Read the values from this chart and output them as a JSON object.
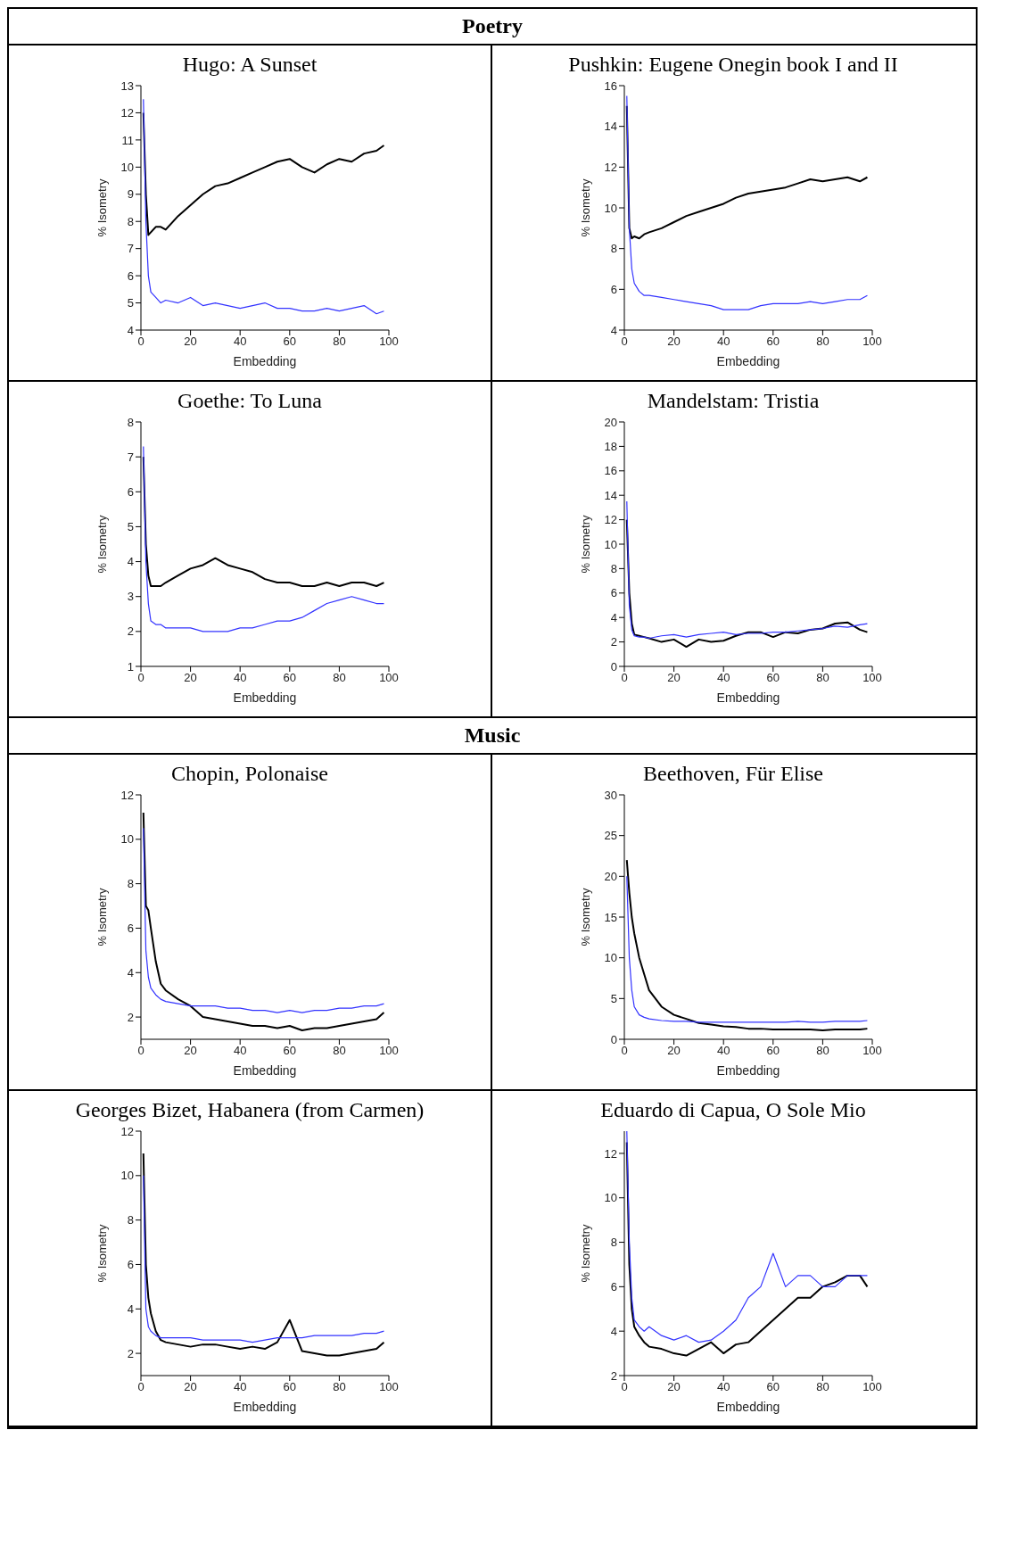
{
  "chart_data": [
    {
      "type": "line",
      "title": "Hugo: A Sunset",
      "annotations": [
        "Poetry"
      ],
      "xlabel": "Embedding",
      "ylabel": "% Isometry",
      "xlim": [
        0,
        100
      ],
      "xticks": [
        0,
        20,
        40,
        60,
        80,
        100
      ],
      "ylim": [
        4,
        13
      ],
      "yticks": [
        4,
        5,
        6,
        7,
        8,
        9,
        10,
        11,
        12,
        13
      ],
      "x": [
        1,
        2,
        3,
        4,
        6,
        8,
        10,
        15,
        20,
        25,
        30,
        35,
        40,
        45,
        50,
        55,
        60,
        65,
        70,
        75,
        80,
        85,
        90,
        95,
        98
      ],
      "series": [
        {
          "color": "#000000",
          "values": [
            12,
            9,
            7.5,
            7.6,
            7.8,
            7.8,
            7.7,
            8.2,
            8.6,
            9.0,
            9.3,
            9.4,
            9.6,
            9.8,
            10.0,
            10.2,
            10.3,
            10.0,
            9.8,
            10.1,
            10.3,
            10.2,
            10.5,
            10.6,
            10.8
          ]
        },
        {
          "color": "#3333ff",
          "values": [
            12.5,
            8,
            6,
            5.4,
            5.2,
            5.0,
            5.1,
            5.0,
            5.2,
            4.9,
            5.0,
            4.9,
            4.8,
            4.9,
            5.0,
            4.8,
            4.8,
            4.7,
            4.7,
            4.8,
            4.7,
            4.8,
            4.9,
            4.6,
            4.7
          ]
        }
      ]
    },
    {
      "type": "line",
      "title": "Pushkin: Eugene Onegin book I and II",
      "xlabel": "Embedding",
      "ylabel": "% Isometry",
      "xlim": [
        0,
        100
      ],
      "xticks": [
        0,
        20,
        40,
        60,
        80,
        100
      ],
      "ylim": [
        4,
        16
      ],
      "yticks": [
        4,
        6,
        8,
        10,
        12,
        14,
        16
      ],
      "x": [
        1,
        2,
        3,
        4,
        6,
        8,
        10,
        15,
        20,
        25,
        30,
        35,
        40,
        45,
        50,
        55,
        60,
        65,
        70,
        75,
        80,
        85,
        90,
        95,
        98
      ],
      "series": [
        {
          "color": "#000000",
          "values": [
            15,
            9,
            8.5,
            8.6,
            8.5,
            8.7,
            8.8,
            9.0,
            9.3,
            9.6,
            9.8,
            10.0,
            10.2,
            10.5,
            10.7,
            10.8,
            10.9,
            11.0,
            11.2,
            11.4,
            11.3,
            11.4,
            11.5,
            11.3,
            11.5
          ]
        },
        {
          "color": "#3333ff",
          "values": [
            15.5,
            9,
            7,
            6.3,
            5.9,
            5.7,
            5.7,
            5.6,
            5.5,
            5.4,
            5.3,
            5.2,
            5.0,
            5.0,
            5.0,
            5.2,
            5.3,
            5.3,
            5.3,
            5.4,
            5.3,
            5.4,
            5.5,
            5.5,
            5.7
          ]
        }
      ]
    },
    {
      "type": "line",
      "title": "Goethe: To Luna",
      "xlabel": "Embedding",
      "ylabel": "% Isometry",
      "xlim": [
        0,
        100
      ],
      "xticks": [
        0,
        20,
        40,
        60,
        80,
        100
      ],
      "ylim": [
        1,
        8
      ],
      "yticks": [
        1,
        2,
        3,
        4,
        5,
        6,
        7,
        8
      ],
      "x": [
        1,
        2,
        3,
        4,
        6,
        8,
        10,
        15,
        20,
        25,
        30,
        35,
        40,
        45,
        50,
        55,
        60,
        65,
        70,
        75,
        80,
        85,
        90,
        95,
        98
      ],
      "series": [
        {
          "color": "#000000",
          "values": [
            7,
            4.5,
            3.6,
            3.3,
            3.3,
            3.3,
            3.4,
            3.6,
            3.8,
            3.9,
            4.1,
            3.9,
            3.8,
            3.7,
            3.5,
            3.4,
            3.4,
            3.3,
            3.3,
            3.4,
            3.3,
            3.4,
            3.4,
            3.3,
            3.4
          ]
        },
        {
          "color": "#3333ff",
          "values": [
            7.3,
            4,
            2.8,
            2.3,
            2.2,
            2.2,
            2.1,
            2.1,
            2.1,
            2.0,
            2.0,
            2.0,
            2.1,
            2.1,
            2.2,
            2.3,
            2.3,
            2.4,
            2.6,
            2.8,
            2.9,
            3.0,
            2.9,
            2.8,
            2.8
          ]
        }
      ]
    },
    {
      "type": "line",
      "title": "Mandelstam: Tristia",
      "xlabel": "Embedding",
      "ylabel": "% Isometry",
      "xlim": [
        0,
        100
      ],
      "xticks": [
        0,
        20,
        40,
        60,
        80,
        100
      ],
      "ylim": [
        0,
        20
      ],
      "yticks": [
        0,
        2,
        4,
        6,
        8,
        10,
        12,
        14,
        16,
        18,
        20
      ],
      "x": [
        1,
        2,
        3,
        4,
        6,
        8,
        10,
        15,
        20,
        25,
        30,
        35,
        40,
        45,
        50,
        55,
        60,
        65,
        70,
        75,
        80,
        85,
        90,
        95,
        98
      ],
      "series": [
        {
          "color": "#000000",
          "values": [
            12,
            6,
            3.5,
            2.6,
            2.5,
            2.4,
            2.3,
            2.0,
            2.2,
            1.6,
            2.2,
            2.0,
            2.1,
            2.5,
            2.8,
            2.8,
            2.4,
            2.8,
            2.7,
            3.0,
            3.1,
            3.5,
            3.6,
            3.0,
            2.8
          ]
        },
        {
          "color": "#3333ff",
          "values": [
            13.5,
            5,
            3,
            2.5,
            2.4,
            2.4,
            2.3,
            2.5,
            2.6,
            2.4,
            2.6,
            2.7,
            2.8,
            2.6,
            2.7,
            2.7,
            2.8,
            2.8,
            2.9,
            3.0,
            3.1,
            3.3,
            3.2,
            3.4,
            3.5
          ]
        }
      ]
    },
    {
      "type": "line",
      "title": "Chopin, Polonaise",
      "annotations": [
        "Music"
      ],
      "xlabel": "Embedding",
      "ylabel": "% Isometry",
      "xlim": [
        0,
        100
      ],
      "xticks": [
        0,
        20,
        40,
        60,
        80,
        100
      ],
      "ylim": [
        1,
        12
      ],
      "yticks": [
        2,
        4,
        6,
        8,
        10,
        12
      ],
      "x": [
        1,
        2,
        3,
        4,
        6,
        8,
        10,
        15,
        20,
        25,
        30,
        35,
        40,
        45,
        50,
        55,
        60,
        65,
        70,
        75,
        80,
        85,
        90,
        95,
        98
      ],
      "series": [
        {
          "color": "#000000",
          "values": [
            11.2,
            7,
            6.8,
            6,
            4.5,
            3.5,
            3.2,
            2.8,
            2.5,
            2.0,
            1.9,
            1.8,
            1.7,
            1.6,
            1.6,
            1.5,
            1.6,
            1.4,
            1.5,
            1.5,
            1.6,
            1.7,
            1.8,
            1.9,
            2.2
          ]
        },
        {
          "color": "#3333ff",
          "values": [
            10.5,
            5,
            3.8,
            3.3,
            3.0,
            2.8,
            2.7,
            2.6,
            2.5,
            2.5,
            2.5,
            2.4,
            2.4,
            2.3,
            2.3,
            2.2,
            2.3,
            2.2,
            2.3,
            2.3,
            2.4,
            2.4,
            2.5,
            2.5,
            2.6
          ]
        }
      ]
    },
    {
      "type": "line",
      "title": "Beethoven, Für Elise",
      "xlabel": "Embedding",
      "ylabel": "% Isometry",
      "xlim": [
        0,
        100
      ],
      "xticks": [
        0,
        20,
        40,
        60,
        80,
        100
      ],
      "ylim": [
        0,
        30
      ],
      "yticks": [
        0,
        5,
        10,
        15,
        20,
        25,
        30
      ],
      "x": [
        1,
        2,
        3,
        4,
        6,
        8,
        10,
        15,
        20,
        25,
        30,
        35,
        40,
        45,
        50,
        55,
        60,
        65,
        70,
        75,
        80,
        85,
        90,
        95,
        98
      ],
      "series": [
        {
          "color": "#000000",
          "values": [
            22,
            18,
            15,
            13,
            10,
            8,
            6,
            4,
            3,
            2.5,
            2.0,
            1.8,
            1.6,
            1.5,
            1.3,
            1.3,
            1.2,
            1.2,
            1.2,
            1.2,
            1.1,
            1.2,
            1.2,
            1.2,
            1.3
          ]
        },
        {
          "color": "#3333ff",
          "values": [
            20,
            10,
            6,
            4,
            3,
            2.7,
            2.5,
            2.3,
            2.2,
            2.2,
            2.1,
            2.1,
            2.1,
            2.1,
            2.1,
            2.1,
            2.1,
            2.1,
            2.2,
            2.1,
            2.1,
            2.2,
            2.2,
            2.2,
            2.3
          ]
        }
      ]
    },
    {
      "type": "line",
      "title": "Georges Bizet, Habanera (from Carmen)",
      "xlabel": "Embedding",
      "ylabel": "% Isometry",
      "xlim": [
        0,
        100
      ],
      "xticks": [
        0,
        20,
        40,
        60,
        80,
        100
      ],
      "ylim": [
        1,
        12
      ],
      "yticks": [
        2,
        4,
        6,
        8,
        10,
        12
      ],
      "x": [
        1,
        2,
        3,
        4,
        6,
        8,
        10,
        15,
        20,
        25,
        30,
        35,
        40,
        45,
        50,
        55,
        60,
        65,
        70,
        75,
        80,
        85,
        90,
        95,
        98
      ],
      "series": [
        {
          "color": "#000000",
          "values": [
            11,
            6,
            4.5,
            3.8,
            3.0,
            2.6,
            2.5,
            2.4,
            2.3,
            2.4,
            2.4,
            2.3,
            2.2,
            2.3,
            2.2,
            2.5,
            3.5,
            2.1,
            2.0,
            1.9,
            1.9,
            2.0,
            2.1,
            2.2,
            2.5
          ]
        },
        {
          "color": "#3333ff",
          "values": [
            10,
            4,
            3.2,
            3.0,
            2.8,
            2.7,
            2.7,
            2.7,
            2.7,
            2.6,
            2.6,
            2.6,
            2.6,
            2.5,
            2.6,
            2.7,
            2.7,
            2.7,
            2.8,
            2.8,
            2.8,
            2.8,
            2.9,
            2.9,
            3.0
          ]
        }
      ]
    },
    {
      "type": "line",
      "title": "Eduardo di Capua, O Sole Mio",
      "xlabel": "Embedding",
      "ylabel": "% Isometry",
      "xlim": [
        0,
        100
      ],
      "xticks": [
        0,
        20,
        40,
        60,
        80,
        100
      ],
      "ylim": [
        2,
        13
      ],
      "yticks": [
        2,
        4,
        6,
        8,
        10,
        12
      ],
      "x": [
        1,
        2,
        3,
        4,
        6,
        8,
        10,
        15,
        20,
        25,
        30,
        35,
        40,
        45,
        50,
        55,
        60,
        65,
        70,
        75,
        80,
        85,
        90,
        95,
        98
      ],
      "series": [
        {
          "color": "#000000",
          "values": [
            12.5,
            7,
            5,
            4.2,
            3.8,
            3.5,
            3.3,
            3.2,
            3.0,
            2.9,
            3.2,
            3.5,
            3.0,
            3.4,
            3.5,
            4.0,
            4.5,
            5.0,
            5.5,
            5.5,
            6.0,
            6.2,
            6.5,
            6.5,
            6.0
          ]
        },
        {
          "color": "#3333ff",
          "values": [
            13,
            8,
            5.5,
            4.5,
            4.2,
            4.0,
            4.2,
            3.8,
            3.6,
            3.8,
            3.5,
            3.6,
            4.0,
            4.5,
            5.5,
            6.0,
            7.5,
            6.0,
            6.5,
            6.5,
            6.0,
            6.0,
            6.5,
            6.5,
            6.5
          ]
        }
      ]
    }
  ]
}
